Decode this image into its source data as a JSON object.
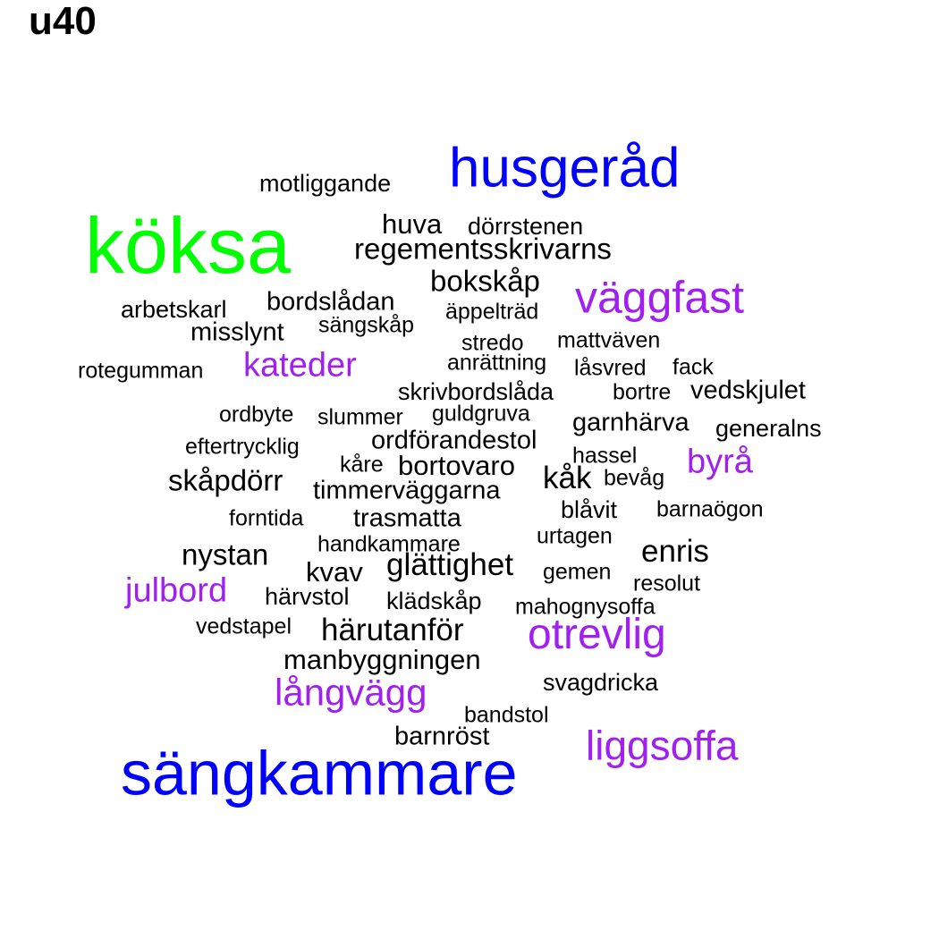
{
  "title": "u40",
  "colors": {
    "black": "#000000",
    "purple": "#a020f0",
    "blue": "#0000ff",
    "green": "#00ff00"
  },
  "words": [
    {
      "id": "w01",
      "text": "köksa",
      "color": "green"
    },
    {
      "id": "w02",
      "text": "husgeråd",
      "color": "blue"
    },
    {
      "id": "w03",
      "text": "sängkammare",
      "color": "blue"
    },
    {
      "id": "w04",
      "text": "väggfast",
      "color": "purple"
    },
    {
      "id": "w05",
      "text": "otrevlig",
      "color": "purple"
    },
    {
      "id": "w06",
      "text": "liggsoffa",
      "color": "purple"
    },
    {
      "id": "w07",
      "text": "långvägg",
      "color": "purple"
    },
    {
      "id": "w08",
      "text": "julbord",
      "color": "purple"
    },
    {
      "id": "w09",
      "text": "kateder",
      "color": "purple"
    },
    {
      "id": "w10",
      "text": "byrå",
      "color": "purple"
    },
    {
      "id": "w11",
      "text": "motliggande",
      "color": "black"
    },
    {
      "id": "w12",
      "text": "huva",
      "color": "black"
    },
    {
      "id": "w13",
      "text": "dörrstenen",
      "color": "black"
    },
    {
      "id": "w14",
      "text": "regementsskrivarns",
      "color": "black"
    },
    {
      "id": "w15",
      "text": "bokskåp",
      "color": "black"
    },
    {
      "id": "w16",
      "text": "arbetskarl",
      "color": "black"
    },
    {
      "id": "w17",
      "text": "bordslådan",
      "color": "black"
    },
    {
      "id": "w18",
      "text": "äppelträd",
      "color": "black"
    },
    {
      "id": "w19",
      "text": "sängskåp",
      "color": "black"
    },
    {
      "id": "w20",
      "text": "misslynt",
      "color": "black"
    },
    {
      "id": "w21",
      "text": "stredo",
      "color": "black"
    },
    {
      "id": "w22",
      "text": "mattväven",
      "color": "black"
    },
    {
      "id": "w23",
      "text": "anrättning",
      "color": "black"
    },
    {
      "id": "w24",
      "text": "rotegumman",
      "color": "black"
    },
    {
      "id": "w25",
      "text": "låsvred",
      "color": "black"
    },
    {
      "id": "w26",
      "text": "fack",
      "color": "black"
    },
    {
      "id": "w27",
      "text": "skrivbordslåda",
      "color": "black"
    },
    {
      "id": "w28",
      "text": "bortre",
      "color": "black"
    },
    {
      "id": "w29",
      "text": "vedskjulet",
      "color": "black"
    },
    {
      "id": "w30",
      "text": "ordbyte",
      "color": "black"
    },
    {
      "id": "w31",
      "text": "slummer",
      "color": "black"
    },
    {
      "id": "w32",
      "text": "guldgruva",
      "color": "black"
    },
    {
      "id": "w33",
      "text": "garnhärva",
      "color": "black"
    },
    {
      "id": "w34",
      "text": "generalns",
      "color": "black"
    },
    {
      "id": "w35",
      "text": "eftertrycklig",
      "color": "black"
    },
    {
      "id": "w36",
      "text": "ordförandestol",
      "color": "black"
    },
    {
      "id": "w37",
      "text": "hassel",
      "color": "black"
    },
    {
      "id": "w38",
      "text": "kåre",
      "color": "black"
    },
    {
      "id": "w39",
      "text": "bortovaro",
      "color": "black"
    },
    {
      "id": "w40",
      "text": "skåpdörr",
      "color": "black"
    },
    {
      "id": "w41",
      "text": "kåk",
      "color": "black"
    },
    {
      "id": "w42",
      "text": "bevåg",
      "color": "black"
    },
    {
      "id": "w43",
      "text": "timmerväggarna",
      "color": "black"
    },
    {
      "id": "w44",
      "text": "blåvit",
      "color": "black"
    },
    {
      "id": "w45",
      "text": "barnaögon",
      "color": "black"
    },
    {
      "id": "w46",
      "text": "forntida",
      "color": "black"
    },
    {
      "id": "w47",
      "text": "trasmatta",
      "color": "black"
    },
    {
      "id": "w48",
      "text": "urtagen",
      "color": "black"
    },
    {
      "id": "w49",
      "text": "handkammare",
      "color": "black"
    },
    {
      "id": "w50",
      "text": "nystan",
      "color": "black"
    },
    {
      "id": "w51",
      "text": "enris",
      "color": "black"
    },
    {
      "id": "w52",
      "text": "kvav",
      "color": "black"
    },
    {
      "id": "w53",
      "text": "glättighet",
      "color": "black"
    },
    {
      "id": "w54",
      "text": "gemen",
      "color": "black"
    },
    {
      "id": "w55",
      "text": "resolut",
      "color": "black"
    },
    {
      "id": "w56",
      "text": "härvstol",
      "color": "black"
    },
    {
      "id": "w57",
      "text": "klädskåp",
      "color": "black"
    },
    {
      "id": "w58",
      "text": "mahognysoffa",
      "color": "black"
    },
    {
      "id": "w59",
      "text": "vedstapel",
      "color": "black"
    },
    {
      "id": "w60",
      "text": "härutanför",
      "color": "black"
    },
    {
      "id": "w61",
      "text": "manbyggningen",
      "color": "black"
    },
    {
      "id": "w62",
      "text": "svagdricka",
      "color": "black"
    },
    {
      "id": "w63",
      "text": "bandstol",
      "color": "black"
    },
    {
      "id": "w64",
      "text": "barnröst",
      "color": "black"
    }
  ]
}
